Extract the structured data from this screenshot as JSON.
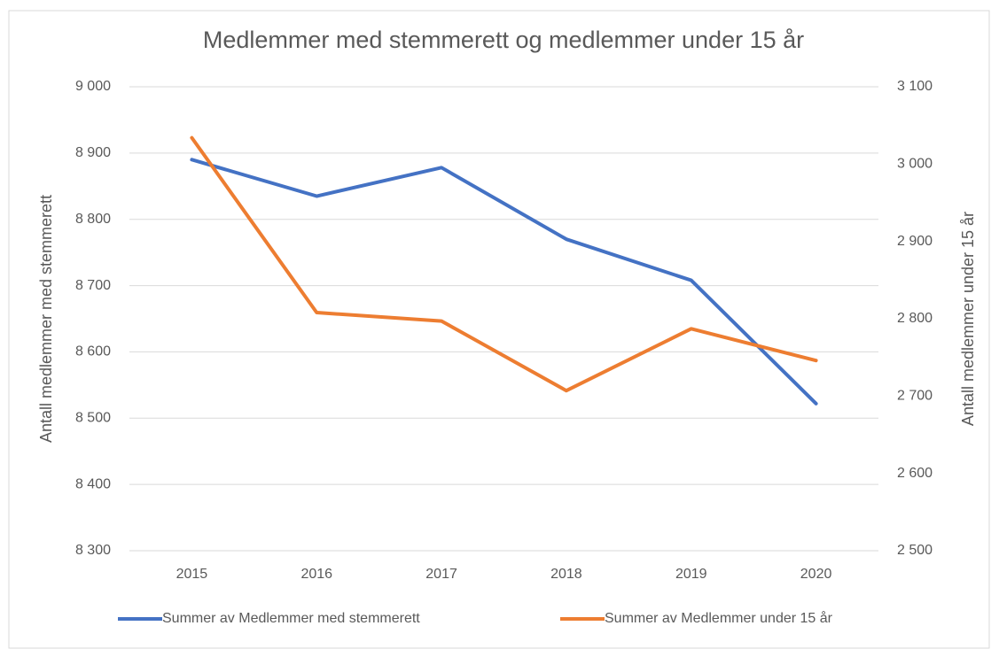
{
  "chart_data": {
    "type": "line",
    "title": "Medlemmer med stemmerett og medlemmer under 15 år",
    "y_label": "Antall medlemmer med stemmerett",
    "y2_label": "Antall medlemmer under 15 år",
    "categories": [
      "2015",
      "2016",
      "2017",
      "2018",
      "2019",
      "2020"
    ],
    "series": [
      {
        "name": "Summer av Medlemmer med stemmerett",
        "color": "#4472c4",
        "values": [
          8890,
          8835,
          8878,
          8770,
          8708,
          8522
        ]
      },
      {
        "name": "Summer av Medlemmer under 15 år",
        "color": "#ed7d31",
        "axis": "y2",
        "values": [
          3034,
          2808,
          2797,
          2707,
          2787,
          2746
        ]
      }
    ],
    "ylim": [
      8300,
      9000
    ],
    "yticks": [
      {
        "value": 8300,
        "label": "8 300"
      },
      {
        "value": 8400,
        "label": "8 400"
      },
      {
        "value": 8500,
        "label": "8 500"
      },
      {
        "value": 8600,
        "label": "8 600"
      },
      {
        "value": 8700,
        "label": "8 700"
      },
      {
        "value": 8800,
        "label": "8 800"
      },
      {
        "value": 8900,
        "label": "8 900"
      },
      {
        "value": 9000,
        "label": "9 000"
      }
    ],
    "y2lim": [
      2500,
      3100
    ],
    "y2ticks": [
      {
        "value": 2500,
        "label": "2 500"
      },
      {
        "value": 2600,
        "label": "2 600"
      },
      {
        "value": 2700,
        "label": "2 700"
      },
      {
        "value": 2800,
        "label": "2 800"
      },
      {
        "value": 2900,
        "label": "2 900"
      },
      {
        "value": 3000,
        "label": "3 000"
      },
      {
        "value": 3100,
        "label": "3 100"
      }
    ],
    "grid": true,
    "legend": "bottom"
  }
}
